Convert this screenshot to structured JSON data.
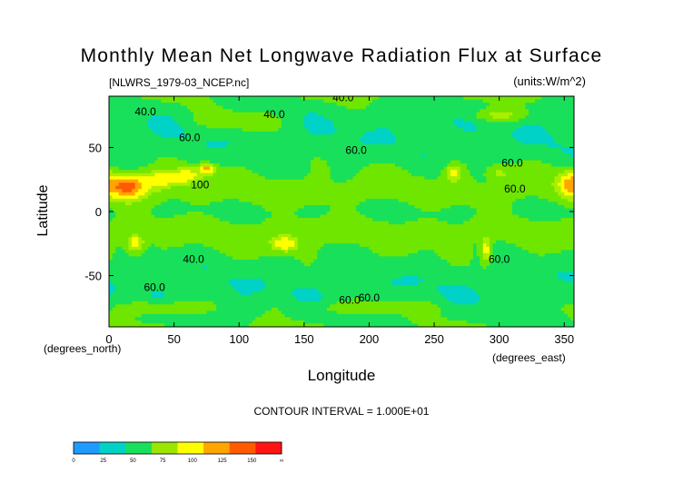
{
  "chart_data": {
    "type": "heatmap",
    "title": "Monthly Mean Net Longwave Radiation Flux at Surface",
    "file_label": "[NLWRS_1979-03_NCEP.nc]",
    "units_label": "(units:W/m^2)",
    "xlabel": "Longitude",
    "ylabel": "Latitude",
    "x_units": "(degrees_north)",
    "y_units": "(degrees_east)",
    "contour_interval": "CONTOUR INTERVAL = 1.000E+01",
    "xlim": [
      0,
      357.5
    ],
    "ylim": [
      -90,
      90
    ],
    "x_ticks": [
      {
        "value": 0,
        "label": "0"
      },
      {
        "value": 50,
        "label": "50"
      },
      {
        "value": 100,
        "label": "100"
      },
      {
        "value": 150,
        "label": "150"
      },
      {
        "value": 200,
        "label": "200"
      },
      {
        "value": 250,
        "label": "250"
      },
      {
        "value": 300,
        "label": "300"
      },
      {
        "value": 350,
        "label": "350"
      }
    ],
    "y_ticks": [
      {
        "value": 50,
        "label": "50"
      },
      {
        "value": 0,
        "label": "0"
      },
      {
        "value": -50,
        "label": "-50"
      }
    ],
    "contour_labels": [
      {
        "text": "40.0",
        "lon": 180,
        "lat": 86
      },
      {
        "text": "40.0",
        "lon": 28,
        "lat": 75
      },
      {
        "text": "40.0",
        "lon": 127,
        "lat": 73
      },
      {
        "text": "60.0",
        "lon": 62,
        "lat": 55
      },
      {
        "text": "60.0",
        "lon": 190,
        "lat": 45
      },
      {
        "text": "100",
        "lon": 70,
        "lat": 18
      },
      {
        "text": "60.0",
        "lon": 310,
        "lat": 35
      },
      {
        "text": "60.0",
        "lon": 312,
        "lat": 15
      },
      {
        "text": "40.0",
        "lon": 65,
        "lat": -40
      },
      {
        "text": "60.0",
        "lon": 300,
        "lat": -40
      },
      {
        "text": "60.0",
        "lon": 35,
        "lat": -62
      },
      {
        "text": "60.0",
        "lon": 185,
        "lat": -72
      },
      {
        "text": "60.0",
        "lon": 200,
        "lat": -70
      }
    ],
    "colorbar": {
      "levels": [
        "0",
        "25",
        "50",
        "75",
        "100",
        "125",
        "150",
        "∞"
      ],
      "colors": [
        "#1e9bff",
        "#00d2c8",
        "#19e05a",
        "#9be600",
        "#ffff00",
        "#ffa500",
        "#ff5a00",
        "#ff1414"
      ]
    },
    "value_bins": [
      {
        "max": 25,
        "color": "#1e9bff"
      },
      {
        "max": 40,
        "color": "#00d2c8"
      },
      {
        "max": 50,
        "color": "#19e05a"
      },
      {
        "max": 62,
        "color": "#6fe600"
      },
      {
        "max": 75,
        "color": "#aaee00"
      },
      {
        "max": 90,
        "color": "#ffff00"
      },
      {
        "max": 105,
        "color": "#ffa500"
      },
      {
        "max": 125,
        "color": "#ff5a00"
      },
      {
        "max": 9999,
        "color": "#ff1414"
      }
    ]
  }
}
